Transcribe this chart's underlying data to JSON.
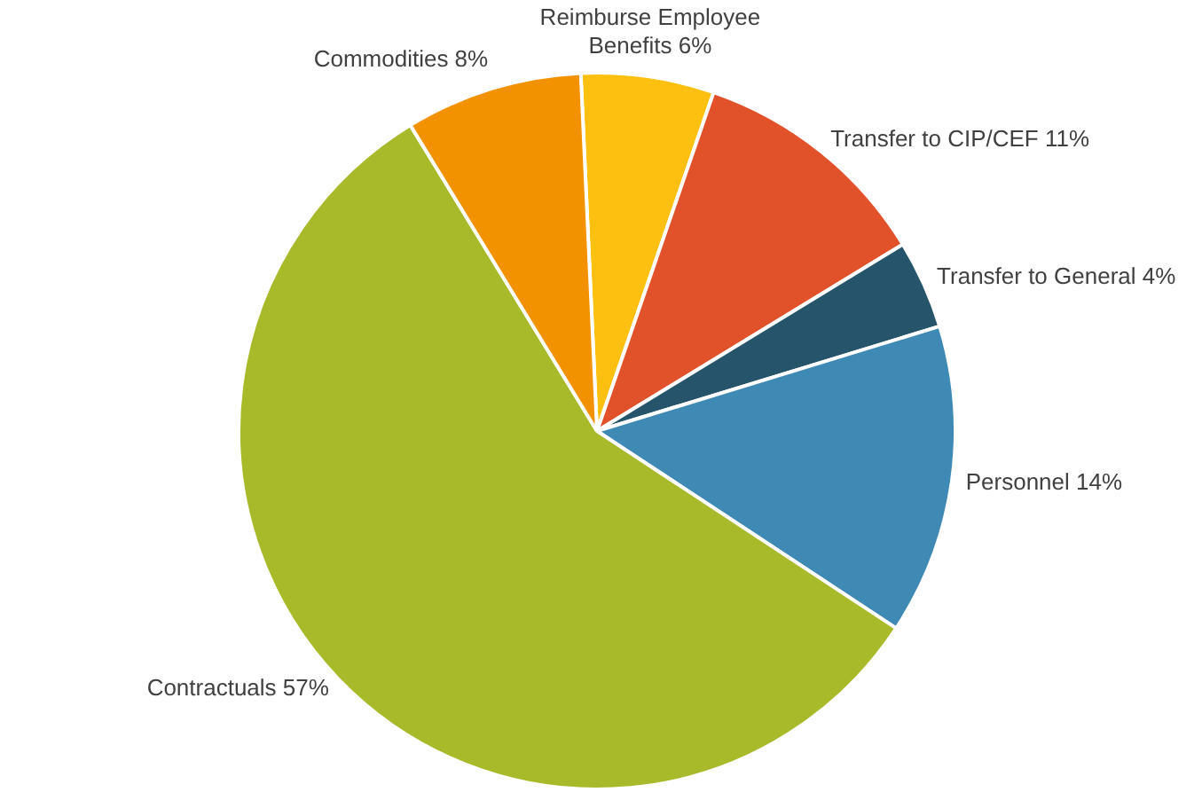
{
  "chart_data": {
    "type": "pie",
    "categories": [
      "Reimburse Employee Benefits",
      "Transfer to CIP/CEF",
      "Transfer to General",
      "Personnel",
      "Contractuals",
      "Commodities"
    ],
    "values": [
      6,
      11,
      4,
      14,
      57,
      8
    ],
    "value_labels": [
      "6%",
      "11%",
      "4%",
      "14%",
      "57%",
      "8%"
    ],
    "colors": [
      "#fdc010",
      "#e2522a",
      "#26546b",
      "#3f8ab5",
      "#a8b92a",
      "#f39200"
    ],
    "legend": false
  }
}
